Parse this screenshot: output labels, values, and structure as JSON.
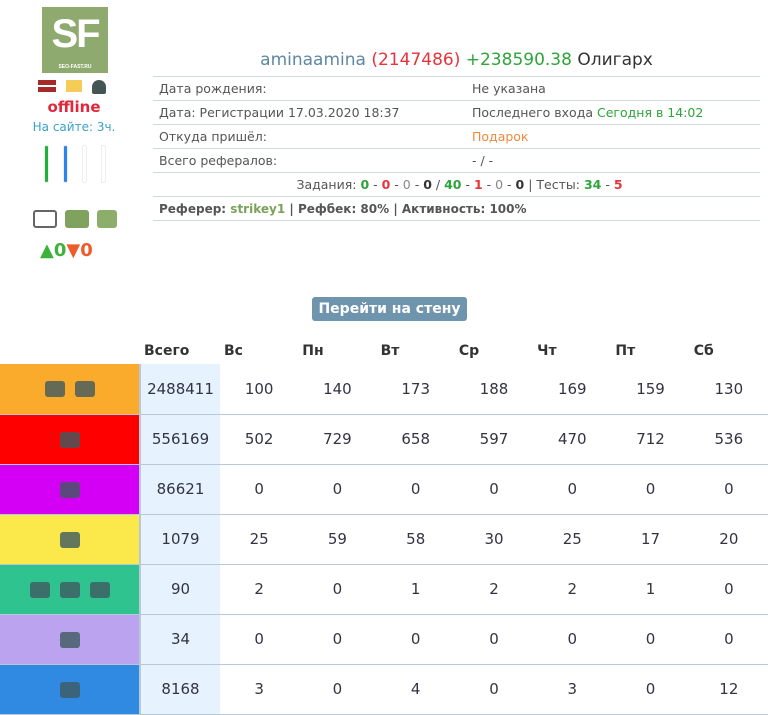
{
  "profile": {
    "logo_text": "SF",
    "logo_sub": "SEO-FAST.RU",
    "status": "offline",
    "on_site": "На сайте: 3ч.",
    "likes": "0",
    "dislikes": "0"
  },
  "header": {
    "username": "aminaamina",
    "id": "(2147486)",
    "balance": "+238590.38",
    "rank": "Олигарх"
  },
  "info": {
    "birth_label": "Дата рождения:",
    "birth_value": "Не указана",
    "reg_label": "Дата: Регистрации 17.03.2020 18:37",
    "last_label": "Последнего входа",
    "last_value": "Сегодня в 14:02",
    "from_label": "Откуда пришёл:",
    "from_value": "Подарок",
    "refs_label": "Всего рефералов:",
    "refs_value": "- / -",
    "tasks_label": "Задания:",
    "tasks": [
      "0",
      "0",
      "0",
      "0",
      "40",
      "1",
      "0",
      "0"
    ],
    "tests_label": "Тесты:",
    "tests": [
      "34",
      "5"
    ],
    "referrer_label": "Реферер:",
    "referrer": "strikey1",
    "refback": "Рефбек: 80%",
    "activity": "Активность: 100%"
  },
  "wall_button": "Перейти на стену",
  "stats": {
    "headers": [
      "Всего",
      "Вс",
      "Пн",
      "Вт",
      "Ср",
      "Чт",
      "Пт",
      "Сб"
    ],
    "rows": [
      {
        "icons": [
          "mouse-icon",
          "monitor-icon"
        ],
        "color": "#fbab2b",
        "values": [
          "2488411",
          "100",
          "140",
          "173",
          "188",
          "169",
          "159",
          "130"
        ]
      },
      {
        "icons": [
          "youtube-icon"
        ],
        "color": "#ff0000",
        "values": [
          "556169",
          "502",
          "729",
          "658",
          "597",
          "470",
          "712",
          "536"
        ]
      },
      {
        "icons": [
          "checklist-icon"
        ],
        "color": "#d400f5",
        "values": [
          "86621",
          "0",
          "0",
          "0",
          "0",
          "0",
          "0",
          "0"
        ]
      },
      {
        "icons": [
          "video-icon"
        ],
        "color": "#fbe94c",
        "values": [
          "1079",
          "25",
          "59",
          "58",
          "30",
          "25",
          "17",
          "20"
        ]
      },
      {
        "icons": [
          "vimeo-icon",
          "tiktok-icon",
          "twitter-icon"
        ],
        "color": "#2fc390",
        "values": [
          "90",
          "2",
          "0",
          "1",
          "2",
          "2",
          "1",
          "0"
        ]
      },
      {
        "icons": [
          "document-icon"
        ],
        "color": "#bba3f0",
        "values": [
          "34",
          "0",
          "0",
          "0",
          "0",
          "0",
          "0",
          "0"
        ]
      },
      {
        "icons": [
          "mail-open-icon"
        ],
        "color": "#308ae2",
        "values": [
          "8168",
          "3",
          "0",
          "4",
          "0",
          "3",
          "0",
          "12"
        ]
      }
    ]
  }
}
